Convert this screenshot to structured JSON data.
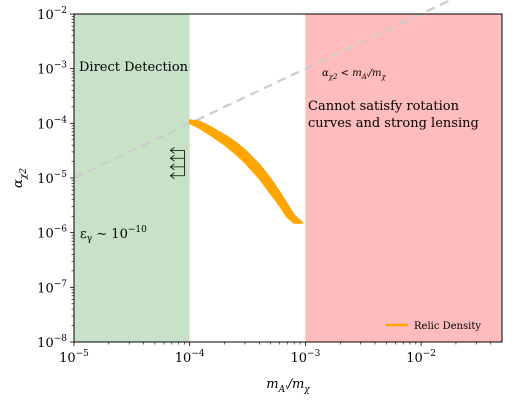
{
  "chart_data": {
    "type": "line",
    "xlabel": "m_{A'}/m_χ",
    "ylabel": "α_{χ2}",
    "x_scale": "log",
    "y_scale": "log",
    "xlim": [
      1e-05,
      0.05
    ],
    "ylim": [
      1e-08,
      0.01
    ],
    "grid": false,
    "x_tick_labels": [
      "10^-5",
      "10^-4",
      "10^-3",
      "10^-2"
    ],
    "y_tick_labels": [
      "10^-8",
      "10^-7",
      "10^-6",
      "10^-5",
      "10^-4",
      "10^-3",
      "10^-2"
    ],
    "regions": [
      {
        "label": "Direct Detection",
        "x_range": [
          1e-05,
          0.0001
        ],
        "color": "#c8e2c8"
      },
      {
        "label": "Cannot satisfy rotation curves and strong lensing",
        "x_range": [
          0.001,
          0.05
        ],
        "color": "#ffbcbc"
      }
    ],
    "annotations": {
      "direct_detection": "Direct Detection",
      "cannot_satisfy_line1": "Cannot satisfy rotation",
      "cannot_satisfy_line2": "curves and strong lensing",
      "epsilon_label": "ε_γ ∼ 10^-10",
      "constraint_label": "α_{χ2} < m_{A'}/m_χ"
    },
    "constraint_line": {
      "style": "dashed",
      "color": "#cccccc",
      "x": [
        1e-05,
        0.05
      ],
      "y": [
        1e-05,
        0.05
      ]
    },
    "series": [
      {
        "name": "Relic Density",
        "color": "#ffa500",
        "x": [
          0.0001,
          0.00012,
          0.00015,
          0.0002,
          0.00025,
          0.0003,
          0.0004,
          0.0005,
          0.0006,
          0.0007,
          0.0008,
          0.00095
        ],
        "y_upper": [
          0.000115,
          0.00011,
          8.75e-05,
          6.15e-05,
          4.5e-05,
          3.3e-05,
          1.77e-05,
          9.8e-06,
          5.6e-06,
          3.3e-06,
          2.1e-06,
          1.5e-06
        ],
        "y_lower": [
          0.0001,
          8.3e-05,
          6.15e-05,
          4.05e-05,
          2.75e-05,
          1.91e-05,
          9.8e-06,
          5.2e-06,
          3.1e-06,
          1.9e-06,
          1.5e-06,
          1.5e-06
        ]
      }
    ],
    "arrows": {
      "x": 9e-05,
      "y": [
        1.1e-05,
        1.6e-05,
        2.3e-05,
        3.2e-05
      ],
      "direction": "left"
    },
    "legend": {
      "position": "bottom-right",
      "entries": [
        "Relic Density"
      ]
    }
  }
}
